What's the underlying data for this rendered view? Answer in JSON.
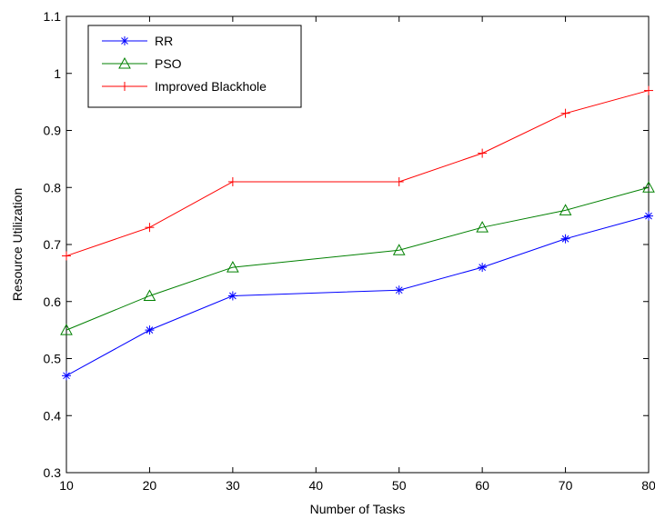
{
  "chart_data": {
    "type": "line",
    "title": "",
    "xlabel": "Number of Tasks",
    "ylabel": "Resource Utilization",
    "xlim": [
      10,
      80
    ],
    "ylim": [
      0.3,
      1.1
    ],
    "x": [
      10,
      20,
      30,
      50,
      60,
      70,
      80
    ],
    "xticks": [
      "10",
      "20",
      "30",
      "40",
      "50",
      "60",
      "70",
      "80"
    ],
    "yticks": [
      "0.3",
      "0.4",
      "0.5",
      "0.6",
      "0.7",
      "0.8",
      "0.9",
      "1",
      "1.1"
    ],
    "grid": false,
    "legend_position": "top-left",
    "series": [
      {
        "name": "RR",
        "color": "#0000ff",
        "marker": "asterisk",
        "values": [
          0.47,
          0.55,
          0.61,
          0.62,
          0.66,
          0.71,
          0.75
        ]
      },
      {
        "name": "PSO",
        "color": "#008000",
        "marker": "triangle",
        "values": [
          0.55,
          0.61,
          0.66,
          0.69,
          0.73,
          0.76,
          0.8
        ]
      },
      {
        "name": "Improved Blackhole",
        "color": "#ff0000",
        "marker": "plus",
        "values": [
          0.68,
          0.73,
          0.81,
          0.81,
          0.86,
          0.93,
          0.97
        ]
      }
    ]
  }
}
